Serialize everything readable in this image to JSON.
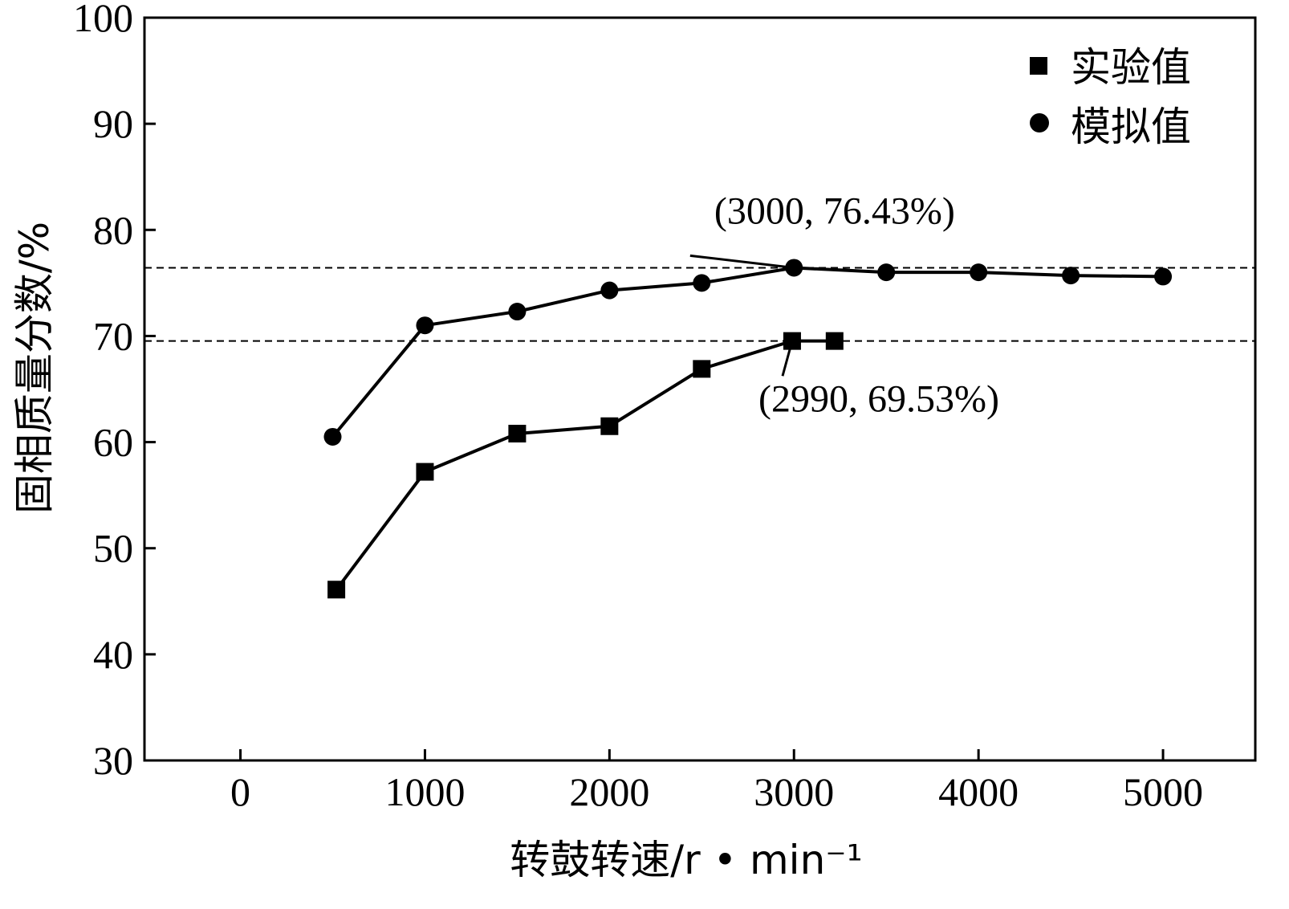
{
  "chart_data": {
    "type": "line",
    "xlabel": "转鼓转速/r • min⁻¹",
    "ylabel": "固相质量分数/%",
    "xlim": [
      -520,
      5500
    ],
    "ylim": [
      30,
      100
    ],
    "xticks": [
      0,
      1000,
      2000,
      3000,
      4000,
      5000
    ],
    "yticks": [
      30,
      40,
      50,
      60,
      70,
      80,
      90,
      100
    ],
    "legend_position": "top-right",
    "grid": false,
    "series": [
      {
        "name": "实验值",
        "marker": "square",
        "color": "#000000",
        "x": [
          520,
          1000,
          1500,
          2000,
          2500,
          2990,
          3220
        ],
        "y": [
          46.1,
          57.2,
          60.8,
          61.5,
          66.9,
          69.53,
          69.53
        ]
      },
      {
        "name": "模拟值",
        "marker": "circle",
        "color": "#000000",
        "x": [
          500,
          1000,
          1500,
          2000,
          2500,
          3000,
          3500,
          4000,
          4500,
          5000
        ],
        "y": [
          60.5,
          71.0,
          72.3,
          74.3,
          75.0,
          76.43,
          76.0,
          76.0,
          75.7,
          75.6
        ]
      }
    ],
    "reference_lines": [
      {
        "axis": "y",
        "value": 76.43,
        "style": "dashed"
      },
      {
        "axis": "y",
        "value": 69.53,
        "style": "dashed"
      }
    ],
    "annotations": [
      {
        "text": "(3000, 76.43%)",
        "point": [
          3000,
          76.43
        ],
        "label_at": [
          3220,
          80.6
        ]
      },
      {
        "text": "(2990, 69.53%)",
        "point": [
          2990,
          69.53
        ],
        "label_at": [
          3460,
          62.9
        ]
      }
    ]
  }
}
